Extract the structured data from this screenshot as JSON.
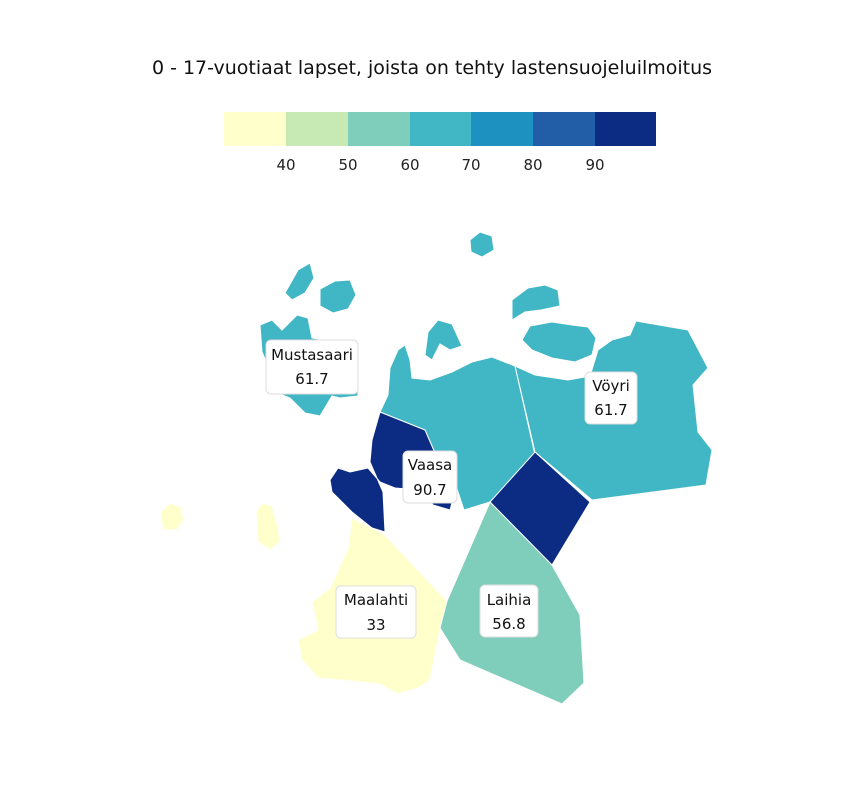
{
  "title": "0 - 17-vuotiaat lapset, joista on tehty lastensuojeluilmoitus",
  "legend": {
    "colors": [
      "#ffffcc",
      "#c7e9b4",
      "#7fcdbb",
      "#41b6c4",
      "#1d91c0",
      "#225ea8",
      "#0c2c84"
    ],
    "ticks": [
      "40",
      "50",
      "60",
      "70",
      "80",
      "90"
    ]
  },
  "regions": [
    {
      "name": "Mustasaari",
      "value": "61.7",
      "color": "#41b6c4"
    },
    {
      "name": "Vöyri",
      "value": "61.7",
      "color": "#41b6c4"
    },
    {
      "name": "Vaasa",
      "value": "90.7",
      "color": "#0c2c84"
    },
    {
      "name": "Maalahti",
      "value": "33",
      "color": "#ffffcc"
    },
    {
      "name": "Laihia",
      "value": "56.8",
      "color": "#7fcdbb"
    }
  ]
}
